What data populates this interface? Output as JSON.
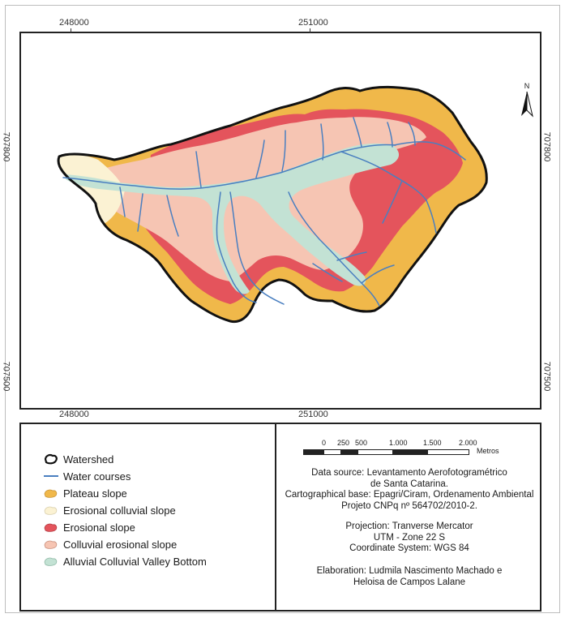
{
  "map": {
    "coords": {
      "x_left": "248000",
      "x_center": "251000",
      "y_upper": "707800",
      "y_lower": "707500"
    },
    "north_label": "N",
    "colors": {
      "plateau_slope": "#f0b84a",
      "erosional_colluvial_slope": "#fbf2d3",
      "erosional_slope": "#e4545c",
      "colluvial_erosional_slope": "#f6c5b3",
      "alluvial_valley_bottom": "#c3e2d4",
      "water_courses": "#4a7fc0",
      "watershed_outline": "#111111"
    }
  },
  "legend": {
    "items": [
      {
        "label": "Watershed",
        "symbol": "watershed-outline-icon"
      },
      {
        "label": "Water courses",
        "symbol": "water-course-line-icon"
      },
      {
        "label": "Plateau slope",
        "symbol": "plateau-slope-swatch"
      },
      {
        "label": "Erosional colluvial slope",
        "symbol": "erosional-colluvial-swatch"
      },
      {
        "label": "Erosional slope",
        "symbol": "erosional-slope-swatch"
      },
      {
        "label": "Colluvial erosional slope",
        "symbol": "colluvial-erosional-swatch"
      },
      {
        "label": "Alluvial Colluvial Valley Bottom",
        "symbol": "alluvial-valley-swatch"
      }
    ]
  },
  "scale_bar": {
    "labels": [
      "0",
      "250",
      "500",
      "1.000",
      "1.500",
      "2.000"
    ],
    "unit": "Metros"
  },
  "info": {
    "data_source_1": "Data source: Levantamento Aerofotogramétrico",
    "data_source_2": "de Santa Catarina.",
    "cart_base_1": "Cartographical base:  Epagri/Ciram, Ordenamento Ambiental",
    "cart_base_2": "Projeto CNPq nº 564702/2010-2.",
    "projection_1": "Projection: Tranverse  Mercator",
    "projection_2": "UTM - Zone 22 S",
    "projection_3": "Coordinate System: WGS 84",
    "elaboration_1": "Elaboration: Ludmila Nascimento Machado e",
    "elaboration_2": "Heloisa de Campos Lalane"
  }
}
